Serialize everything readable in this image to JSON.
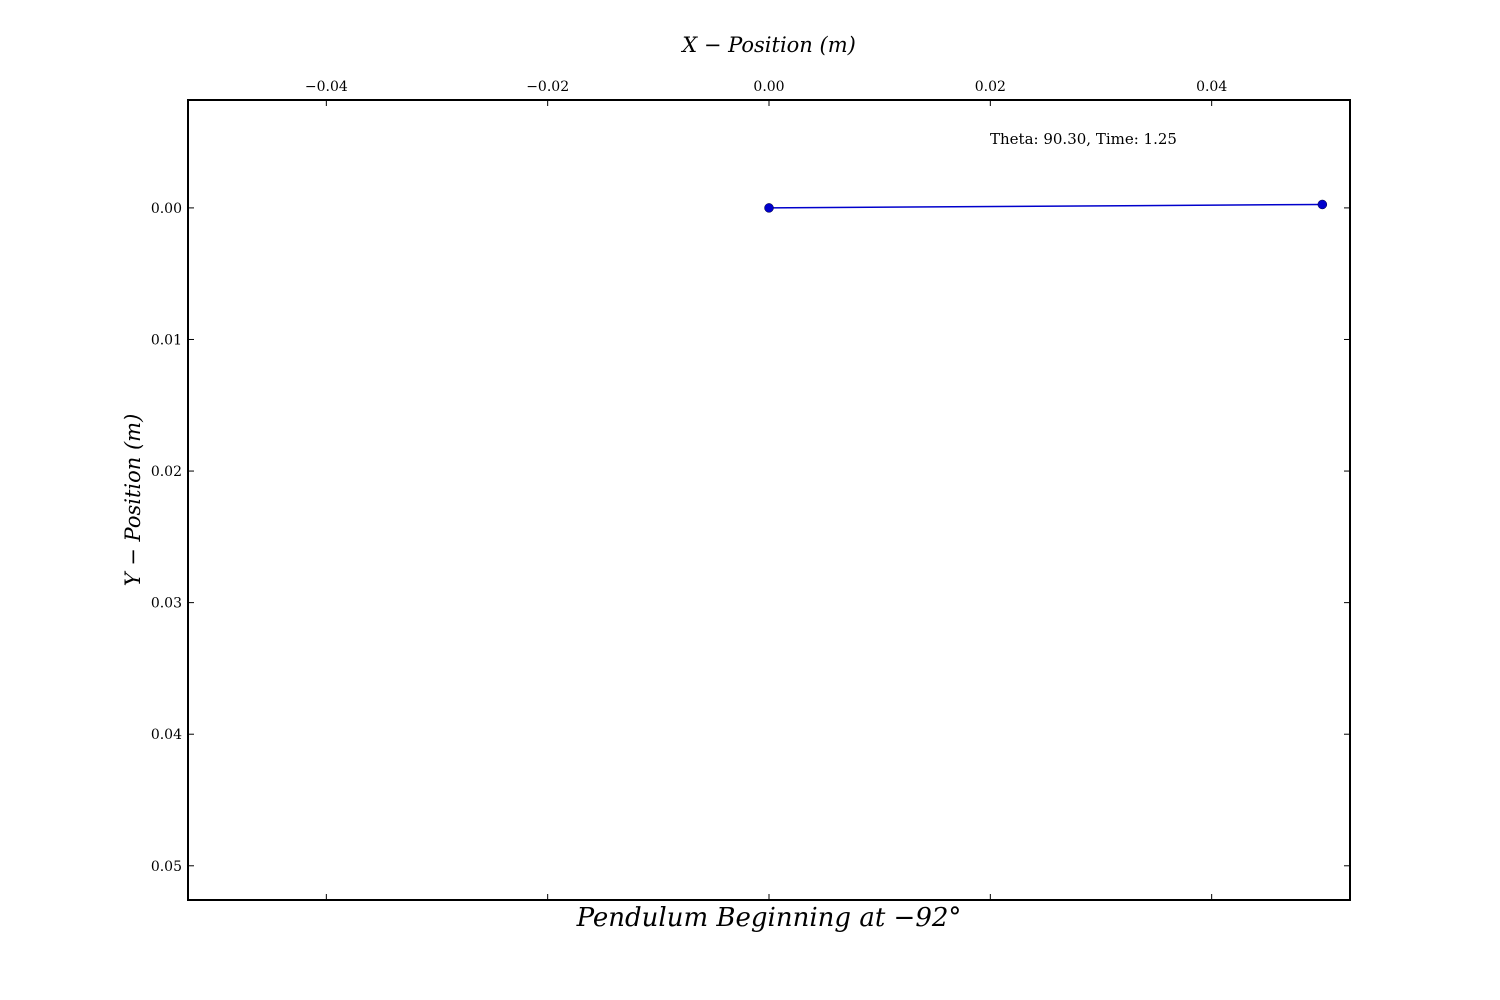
{
  "chart_data": {
    "type": "line",
    "xlabel": "X − Position (m)",
    "ylabel": "Y − Position (m)",
    "caption": "Pendulum Beginning at  −92°",
    "annotation": "Theta: 90.30, Time: 1.25",
    "xlim": [
      -0.0525,
      0.0525
    ],
    "ylim": [
      0.0526,
      -0.0082
    ],
    "x_axis_position": "top",
    "y_inverted": true,
    "grid": false,
    "xticks": [
      -0.04,
      -0.02,
      0.0,
      0.02,
      0.04
    ],
    "xtick_labels": [
      "−0.04",
      "−0.02",
      "0.00",
      "0.02",
      "0.04"
    ],
    "yticks": [
      0.0,
      0.01,
      0.02,
      0.03,
      0.04,
      0.05
    ],
    "ytick_labels": [
      "0.00",
      "0.01",
      "0.02",
      "0.03",
      "0.04",
      "0.05"
    ],
    "series": [
      {
        "color": "#0000cc",
        "marker": "circle",
        "x": [
          0.0,
          0.05
        ],
        "y": [
          0.0,
          -0.00026
        ]
      }
    ]
  }
}
